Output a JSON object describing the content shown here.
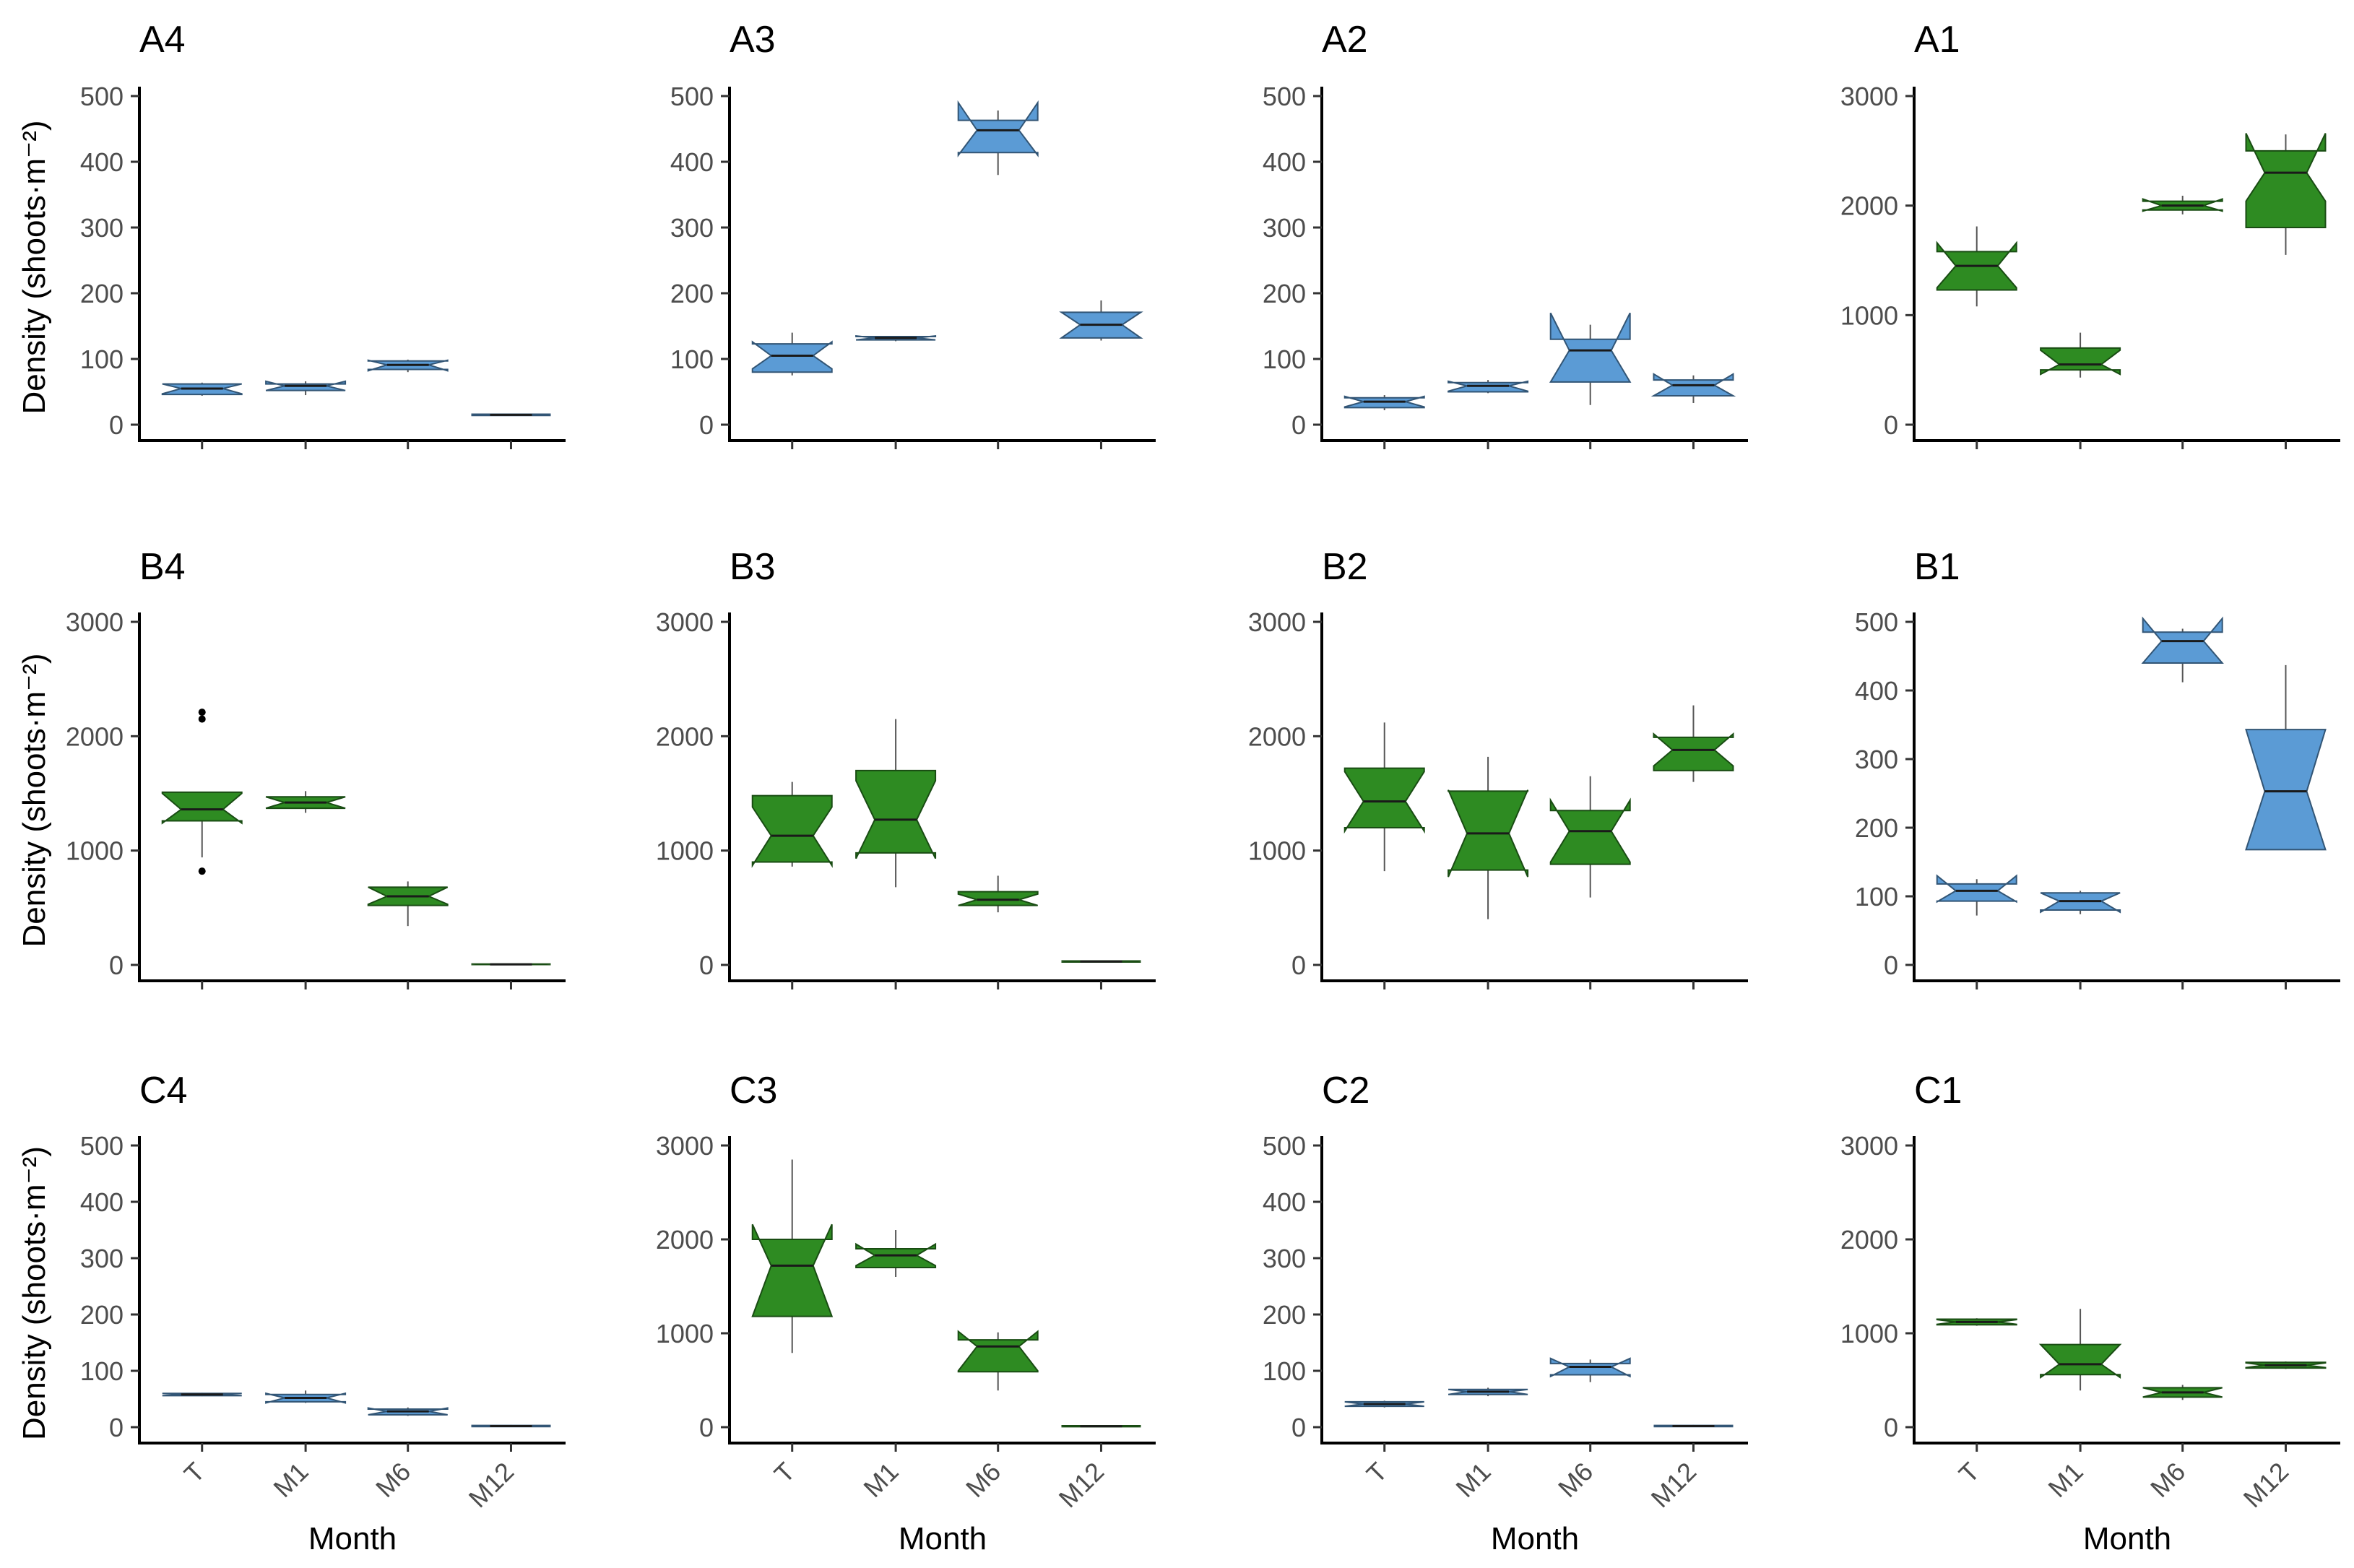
{
  "figure": {
    "ylabel": "Density (shoots·m⁻²)",
    "xlabel": "Month"
  },
  "colors": {
    "blue": "#5b9bd5",
    "green": "#2e8b22"
  },
  "chart_data": [
    {
      "type": "boxplot",
      "title": "A4",
      "categories": [
        "T",
        "M1",
        "M6",
        "M12"
      ],
      "ylim": [
        0,
        500
      ],
      "yticks": [
        0,
        100,
        200,
        300,
        400,
        500
      ],
      "color": "blue",
      "boxes": [
        {
          "median": 55,
          "q1": 46,
          "q3": 62,
          "whisker_low": 44,
          "whisker_high": 64,
          "notch_low": 47,
          "notch_high": 62
        },
        {
          "median": 59,
          "q1": 52,
          "q3": 62,
          "whisker_low": 45,
          "whisker_high": 66,
          "notch_low": 52,
          "notch_high": 66
        },
        {
          "median": 91,
          "q1": 84,
          "q3": 97,
          "whisker_low": 80,
          "whisker_high": 99,
          "notch_low": 82,
          "notch_high": 98
        },
        {
          "median": 15,
          "q1": 14,
          "q3": 16,
          "whisker_low": 14,
          "whisker_high": 16,
          "notch_low": 14,
          "notch_high": 16
        }
      ]
    },
    {
      "type": "boxplot",
      "title": "A3",
      "categories": [
        "T",
        "M1",
        "M6",
        "M12"
      ],
      "ylim": [
        0,
        500
      ],
      "yticks": [
        0,
        100,
        200,
        300,
        400,
        500
      ],
      "color": "blue",
      "boxes": [
        {
          "median": 105,
          "q1": 80,
          "q3": 123,
          "whisker_low": 75,
          "whisker_high": 140,
          "notch_low": 85,
          "notch_high": 126
        },
        {
          "median": 132,
          "q1": 129,
          "q3": 134,
          "whisker_low": 127,
          "whisker_high": 135,
          "notch_low": 129,
          "notch_high": 135
        },
        {
          "median": 448,
          "q1": 414,
          "q3": 463,
          "whisker_low": 380,
          "whisker_high": 478,
          "notch_low": 410,
          "notch_high": 490
        },
        {
          "median": 152,
          "q1": 132,
          "q3": 171,
          "whisker_low": 128,
          "whisker_high": 189,
          "notch_low": 132,
          "notch_high": 171
        }
      ]
    },
    {
      "type": "boxplot",
      "title": "A2",
      "categories": [
        "T",
        "M1",
        "M6",
        "M12"
      ],
      "ylim": [
        0,
        500
      ],
      "yticks": [
        0,
        100,
        200,
        300,
        400,
        500
      ],
      "color": "blue",
      "boxes": [
        {
          "median": 35,
          "q1": 26,
          "q3": 41,
          "whisker_low": 22,
          "whisker_high": 45,
          "notch_low": 27,
          "notch_high": 43
        },
        {
          "median": 59,
          "q1": 50,
          "q3": 64,
          "whisker_low": 48,
          "whisker_high": 68,
          "notch_low": 51,
          "notch_high": 66
        },
        {
          "median": 113,
          "q1": 65,
          "q3": 130,
          "whisker_low": 30,
          "whisker_high": 152,
          "notch_low": 65,
          "notch_high": 170
        },
        {
          "median": 60,
          "q1": 44,
          "q3": 68,
          "whisker_low": 33,
          "whisker_high": 75,
          "notch_low": 44,
          "notch_high": 77
        }
      ]
    },
    {
      "type": "boxplot",
      "title": "A1",
      "categories": [
        "T",
        "M1",
        "M6",
        "M12"
      ],
      "ylim": [
        0,
        3000
      ],
      "yticks": [
        0,
        1000,
        2000,
        3000
      ],
      "color": "green",
      "boxes": [
        {
          "median": 1450,
          "q1": 1230,
          "q3": 1580,
          "whisker_low": 1080,
          "whisker_high": 1810,
          "notch_low": 1250,
          "notch_high": 1660
        },
        {
          "median": 550,
          "q1": 500,
          "q3": 700,
          "whisker_low": 430,
          "whisker_high": 840,
          "notch_low": 460,
          "notch_high": 680
        },
        {
          "median": 2000,
          "q1": 1960,
          "q3": 2040,
          "whisker_low": 1920,
          "whisker_high": 2090,
          "notch_low": 1950,
          "notch_high": 2060
        },
        {
          "median": 2300,
          "q1": 1800,
          "q3": 2500,
          "whisker_low": 1550,
          "whisker_high": 2650,
          "notch_low": 2040,
          "notch_high": 2660
        }
      ]
    },
    {
      "type": "boxplot",
      "title": "B4",
      "categories": [
        "T",
        "M1",
        "M6",
        "M12"
      ],
      "ylim": [
        0,
        3000
      ],
      "yticks": [
        0,
        1000,
        2000,
        3000
      ],
      "color": "green",
      "boxes": [
        {
          "median": 1360,
          "q1": 1260,
          "q3": 1510,
          "whisker_low": 940,
          "whisker_high": 1510,
          "notch_low": 1240,
          "notch_high": 1500,
          "outliers": [
            820,
            2150,
            2210
          ]
        },
        {
          "median": 1420,
          "q1": 1370,
          "q3": 1470,
          "whisker_low": 1330,
          "whisker_high": 1520,
          "notch_low": 1370,
          "notch_high": 1470
        },
        {
          "median": 600,
          "q1": 520,
          "q3": 680,
          "whisker_low": 340,
          "whisker_high": 730,
          "notch_low": 530,
          "notch_high": 680
        },
        {
          "median": 5,
          "q1": 3,
          "q3": 8,
          "whisker_low": 2,
          "whisker_high": 10,
          "notch_low": 3,
          "notch_high": 8
        }
      ]
    },
    {
      "type": "boxplot",
      "title": "B3",
      "categories": [
        "T",
        "M1",
        "M6",
        "M12"
      ],
      "ylim": [
        0,
        3000
      ],
      "yticks": [
        0,
        1000,
        2000,
        3000
      ],
      "color": "green",
      "boxes": [
        {
          "median": 1130,
          "q1": 900,
          "q3": 1480,
          "whisker_low": 860,
          "whisker_high": 1600,
          "notch_low": 870,
          "notch_high": 1380
        },
        {
          "median": 1270,
          "q1": 980,
          "q3": 1700,
          "whisker_low": 680,
          "whisker_high": 2150,
          "notch_low": 930,
          "notch_high": 1610
        },
        {
          "median": 570,
          "q1": 520,
          "q3": 640,
          "whisker_low": 460,
          "whisker_high": 780,
          "notch_low": 520,
          "notch_high": 620
        },
        {
          "median": 30,
          "q1": 25,
          "q3": 35,
          "whisker_low": 20,
          "whisker_high": 40,
          "notch_low": 25,
          "notch_high": 35
        }
      ]
    },
    {
      "type": "boxplot",
      "title": "B2",
      "categories": [
        "T",
        "M1",
        "M6",
        "M12"
      ],
      "ylim": [
        0,
        3000
      ],
      "yticks": [
        0,
        1000,
        2000,
        3000
      ],
      "color": "green",
      "boxes": [
        {
          "median": 1430,
          "q1": 1200,
          "q3": 1720,
          "whisker_low": 820,
          "whisker_high": 2120,
          "notch_low": 1170,
          "notch_high": 1690
        },
        {
          "median": 1150,
          "q1": 830,
          "q3": 1520,
          "whisker_low": 400,
          "whisker_high": 1820,
          "notch_low": 770,
          "notch_high": 1530
        },
        {
          "median": 1170,
          "q1": 880,
          "q3": 1350,
          "whisker_low": 590,
          "whisker_high": 1650,
          "notch_low": 900,
          "notch_high": 1440
        },
        {
          "median": 1880,
          "q1": 1700,
          "q3": 1990,
          "whisker_low": 1600,
          "whisker_high": 2270,
          "notch_low": 1740,
          "notch_high": 2020
        }
      ]
    },
    {
      "type": "boxplot",
      "title": "B1",
      "categories": [
        "T",
        "M1",
        "M6",
        "M12"
      ],
      "ylim": [
        0,
        500
      ],
      "yticks": [
        0,
        100,
        200,
        300,
        400,
        500
      ],
      "color": "blue",
      "boxes": [
        {
          "median": 108,
          "q1": 93,
          "q3": 118,
          "whisker_low": 72,
          "whisker_high": 125,
          "notch_low": 92,
          "notch_high": 130
        },
        {
          "median": 93,
          "q1": 80,
          "q3": 105,
          "whisker_low": 74,
          "whisker_high": 108,
          "notch_low": 77,
          "notch_high": 105
        },
        {
          "median": 472,
          "q1": 440,
          "q3": 485,
          "whisker_low": 412,
          "whisker_high": 490,
          "notch_low": 440,
          "notch_high": 505
        },
        {
          "median": 253,
          "q1": 168,
          "q3": 343,
          "whisker_low": 168,
          "whisker_high": 437,
          "notch_low": 168,
          "notch_high": 343
        }
      ]
    },
    {
      "type": "boxplot",
      "title": "C4",
      "categories": [
        "T",
        "M1",
        "M6",
        "M12"
      ],
      "ylim": [
        0,
        500
      ],
      "yticks": [
        0,
        100,
        200,
        300,
        400,
        500
      ],
      "color": "blue",
      "boxes": [
        {
          "median": 58,
          "q1": 56,
          "q3": 60,
          "whisker_low": 55,
          "whisker_high": 61,
          "notch_low": 56,
          "notch_high": 60
        },
        {
          "median": 52,
          "q1": 45,
          "q3": 58,
          "whisker_low": 43,
          "whisker_high": 65,
          "notch_low": 43,
          "notch_high": 60
        },
        {
          "median": 28,
          "q1": 22,
          "q3": 32,
          "whisker_low": 20,
          "whisker_high": 35,
          "notch_low": 22,
          "notch_high": 34
        },
        {
          "median": 2,
          "q1": 1,
          "q3": 3,
          "whisker_low": 0,
          "whisker_high": 4,
          "notch_low": 1,
          "notch_high": 3
        }
      ]
    },
    {
      "type": "boxplot",
      "title": "C3",
      "categories": [
        "T",
        "M1",
        "M6",
        "M12"
      ],
      "ylim": [
        0,
        3000
      ],
      "yticks": [
        0,
        1000,
        2000,
        3000
      ],
      "color": "green",
      "boxes": [
        {
          "median": 1720,
          "q1": 1180,
          "q3": 2000,
          "whisker_low": 790,
          "whisker_high": 2850,
          "notch_low": 1180,
          "notch_high": 2160
        },
        {
          "median": 1830,
          "q1": 1700,
          "q3": 1900,
          "whisker_low": 1600,
          "whisker_high": 2100,
          "notch_low": 1720,
          "notch_high": 1950
        },
        {
          "median": 860,
          "q1": 590,
          "q3": 930,
          "whisker_low": 390,
          "whisker_high": 1010,
          "notch_low": 600,
          "notch_high": 1020
        },
        {
          "median": 10,
          "q1": 5,
          "q3": 15,
          "whisker_low": 3,
          "whisker_high": 18,
          "notch_low": 5,
          "notch_high": 15
        }
      ]
    },
    {
      "type": "boxplot",
      "title": "C2",
      "categories": [
        "T",
        "M1",
        "M6",
        "M12"
      ],
      "ylim": [
        0,
        500
      ],
      "yticks": [
        0,
        100,
        200,
        300,
        400,
        500
      ],
      "color": "blue",
      "boxes": [
        {
          "median": 41,
          "q1": 37,
          "q3": 45,
          "whisker_low": 35,
          "whisker_high": 47,
          "notch_low": 37,
          "notch_high": 45
        },
        {
          "median": 63,
          "q1": 58,
          "q3": 67,
          "whisker_low": 55,
          "whisker_high": 70,
          "notch_low": 58,
          "notch_high": 67
        },
        {
          "median": 107,
          "q1": 93,
          "q3": 113,
          "whisker_low": 80,
          "whisker_high": 120,
          "notch_low": 90,
          "notch_high": 122
        },
        {
          "median": 2,
          "q1": 1,
          "q3": 3,
          "whisker_low": 0,
          "whisker_high": 4,
          "notch_low": 1,
          "notch_high": 3
        }
      ]
    },
    {
      "type": "boxplot",
      "title": "C1",
      "categories": [
        "T",
        "M1",
        "M6",
        "M12"
      ],
      "ylim": [
        0,
        3000
      ],
      "yticks": [
        0,
        1000,
        2000,
        3000
      ],
      "color": "green",
      "boxes": [
        {
          "median": 1120,
          "q1": 1090,
          "q3": 1150,
          "whisker_low": 1080,
          "whisker_high": 1160,
          "notch_low": 1095,
          "notch_high": 1145
        },
        {
          "median": 670,
          "q1": 560,
          "q3": 880,
          "whisker_low": 390,
          "whisker_high": 1260,
          "notch_low": 530,
          "notch_high": 880
        },
        {
          "median": 370,
          "q1": 320,
          "q3": 420,
          "whisker_low": 290,
          "whisker_high": 450,
          "notch_low": 320,
          "notch_high": 420
        },
        {
          "median": 660,
          "q1": 630,
          "q3": 690,
          "whisker_low": 620,
          "whisker_high": 700,
          "notch_low": 635,
          "notch_high": 685
        }
      ]
    }
  ]
}
